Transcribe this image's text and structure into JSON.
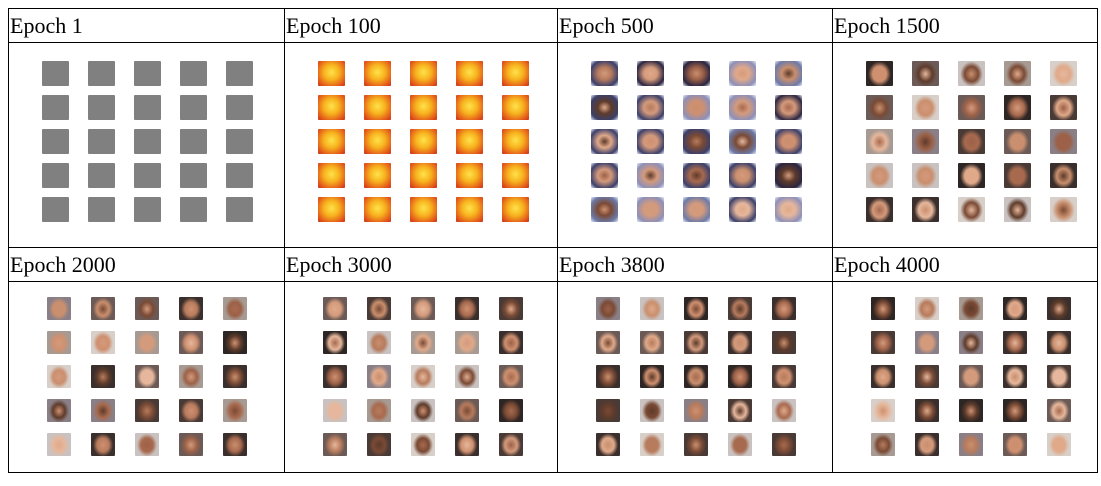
{
  "table": {
    "rows": [
      [
        "Epoch 1",
        "Epoch 100",
        "Epoch 500",
        "Epoch 1500"
      ],
      [
        "Epoch 2000",
        "Epoch 3000",
        "Epoch 3800",
        "Epoch 4000"
      ]
    ]
  }
}
